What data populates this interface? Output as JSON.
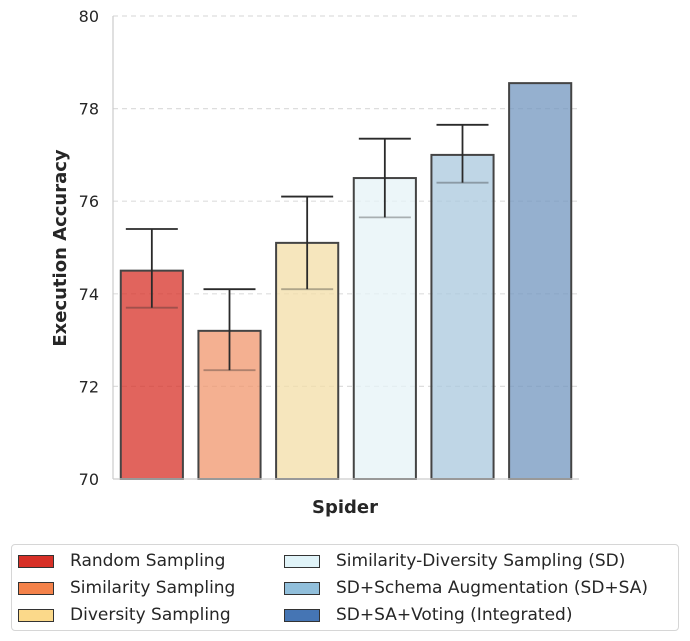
{
  "chart_data": {
    "type": "bar",
    "title": "",
    "xlabel": "Spider",
    "ylabel": "Execution Accuracy",
    "ylim": [
      70,
      80
    ],
    "yticks": [
      70,
      72,
      74,
      76,
      78,
      80
    ],
    "grid": "horizontal dashed",
    "legend_position": "bottom",
    "categories": [
      "Spider"
    ],
    "series": [
      {
        "name": "Random Sampling",
        "value": 74.5,
        "err_low": 73.7,
        "err_high": 75.4,
        "color": "#d73027",
        "legend_color": "#d73027"
      },
      {
        "name": "Similarity Sampling",
        "value": 73.2,
        "err_low": 72.35,
        "err_high": 74.1,
        "color": "#f0956c",
        "legend_color": "#f4824a"
      },
      {
        "name": "Diversity Sampling",
        "value": 75.1,
        "err_low": 74.1,
        "err_high": 76.1,
        "color": "#f3dda7",
        "legend_color": "#fbd98a"
      },
      {
        "name": "Similarity-Diversity Sampling (SD)",
        "value": 76.5,
        "err_low": 75.65,
        "err_high": 77.35,
        "color": "#e6f3f7",
        "legend_color": "#e0f3f8"
      },
      {
        "name": "SD+Schema Augmentation (SD+SA)",
        "value": 77.0,
        "err_low": 76.4,
        "err_high": 77.65,
        "color": "#a9c8de",
        "legend_color": "#91bfdb"
      },
      {
        "name": "SD+SA+Voting (Integrated)",
        "value": 78.55,
        "err_low": null,
        "err_high": null,
        "color": "#7295bf",
        "legend_color": "#4575b4"
      }
    ]
  }
}
